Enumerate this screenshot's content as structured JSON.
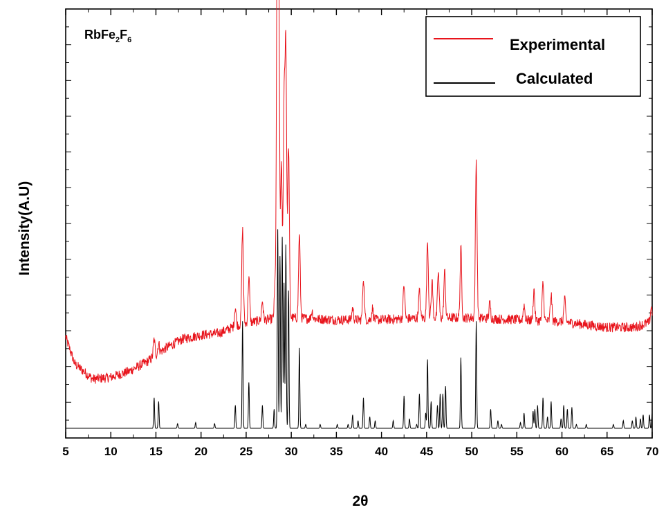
{
  "chart_data": {
    "type": "line",
    "annotation": {
      "base": "RbFe",
      "sub1": "2",
      "mid": "F",
      "sub2": "6"
    },
    "xlabel": "2θ",
    "ylabel": "Intensity(A.U)",
    "xlim": [
      5,
      70
    ],
    "x_ticks": [
      5,
      10,
      15,
      20,
      25,
      30,
      35,
      40,
      45,
      50,
      55,
      60,
      65,
      70
    ],
    "ylim": [
      0,
      100
    ],
    "y_ticks_labeled": false,
    "legend_position": "top-right",
    "series": [
      {
        "name": "Experimental",
        "color": "#e8141c",
        "baseline": [
          [
            5,
            24
          ],
          [
            6,
            17
          ],
          [
            8,
            13
          ],
          [
            10,
            13.5
          ],
          [
            12,
            15
          ],
          [
            14,
            17.5
          ],
          [
            16,
            21
          ],
          [
            18,
            23.5
          ],
          [
            20,
            24.5
          ],
          [
            22,
            25
          ],
          [
            24,
            27
          ],
          [
            27,
            28.5
          ],
          [
            30,
            29
          ],
          [
            35,
            28.5
          ],
          [
            40,
            28.5
          ],
          [
            45,
            29
          ],
          [
            50,
            29
          ],
          [
            55,
            28.5
          ],
          [
            60,
            28
          ],
          [
            65,
            26.5
          ],
          [
            68,
            26.5
          ],
          [
            70,
            28
          ]
        ],
        "peaks": [
          [
            14.8,
            4.5
          ],
          [
            15.3,
            2.5
          ],
          [
            23.8,
            5
          ],
          [
            24.6,
            25
          ],
          [
            25.3,
            12
          ],
          [
            26.8,
            5
          ],
          [
            28.2,
            8
          ],
          [
            28.45,
            100
          ],
          [
            28.6,
            90
          ],
          [
            28.9,
            40
          ],
          [
            29.2,
            55
          ],
          [
            29.4,
            70
          ],
          [
            29.7,
            45
          ],
          [
            30.9,
            22
          ],
          [
            32.3,
            2
          ],
          [
            36.8,
            3
          ],
          [
            38.0,
            11
          ],
          [
            39.0,
            3
          ],
          [
            42.5,
            9
          ],
          [
            44.2,
            7
          ],
          [
            45.1,
            20
          ],
          [
            45.6,
            10
          ],
          [
            46.3,
            12
          ],
          [
            47.0,
            12
          ],
          [
            48.8,
            18
          ],
          [
            50.5,
            41
          ],
          [
            52.0,
            4
          ],
          [
            55.8,
            4
          ],
          [
            56.9,
            8
          ],
          [
            57.9,
            10
          ],
          [
            58.8,
            7
          ],
          [
            60.3,
            6
          ],
          [
            69.9,
            4
          ]
        ]
      },
      {
        "name": "Calculated",
        "color": "#000000",
        "baseline": [
          [
            5,
            0
          ],
          [
            70,
            0
          ]
        ],
        "peaks": [
          [
            14.8,
            8
          ],
          [
            15.3,
            7
          ],
          [
            17.4,
            1.2
          ],
          [
            19.4,
            1.5
          ],
          [
            21.5,
            1.2
          ],
          [
            23.8,
            6
          ],
          [
            24.6,
            28
          ],
          [
            25.3,
            12
          ],
          [
            26.8,
            6
          ],
          [
            28.1,
            5
          ],
          [
            28.5,
            52
          ],
          [
            28.75,
            45
          ],
          [
            29.0,
            50
          ],
          [
            29.2,
            38
          ],
          [
            29.4,
            48
          ],
          [
            29.7,
            36
          ],
          [
            30.9,
            21
          ],
          [
            31.6,
            1
          ],
          [
            33.2,
            1
          ],
          [
            35.1,
            1
          ],
          [
            36.3,
            1
          ],
          [
            36.8,
            3.5
          ],
          [
            37.4,
            2
          ],
          [
            38.0,
            8
          ],
          [
            38.7,
            3
          ],
          [
            39.3,
            2
          ],
          [
            41.3,
            2
          ],
          [
            42.5,
            8.5
          ],
          [
            43.1,
            2.5
          ],
          [
            43.9,
            1
          ],
          [
            44.2,
            9
          ],
          [
            44.9,
            4
          ],
          [
            45.1,
            18
          ],
          [
            45.5,
            7
          ],
          [
            46.2,
            6
          ],
          [
            46.5,
            9
          ],
          [
            46.8,
            9
          ],
          [
            47.1,
            11
          ],
          [
            48.8,
            18.5
          ],
          [
            50.5,
            28
          ],
          [
            52.1,
            5
          ],
          [
            52.9,
            2
          ],
          [
            53.3,
            1
          ],
          [
            55.4,
            1.5
          ],
          [
            55.8,
            4
          ],
          [
            56.8,
            4.5
          ],
          [
            57.0,
            5
          ],
          [
            57.3,
            6
          ],
          [
            57.9,
            8
          ],
          [
            58.4,
            3
          ],
          [
            58.8,
            7
          ],
          [
            59.9,
            2.5
          ],
          [
            60.2,
            6
          ],
          [
            60.6,
            5
          ],
          [
            61.1,
            5.5
          ],
          [
            61.6,
            1
          ],
          [
            62.7,
            1
          ],
          [
            65.7,
            1
          ],
          [
            66.8,
            2
          ],
          [
            67.8,
            2
          ],
          [
            68.2,
            3
          ],
          [
            68.7,
            2.5
          ],
          [
            69.0,
            3.5
          ],
          [
            69.7,
            3.5
          ],
          [
            70.0,
            4
          ]
        ]
      }
    ]
  }
}
